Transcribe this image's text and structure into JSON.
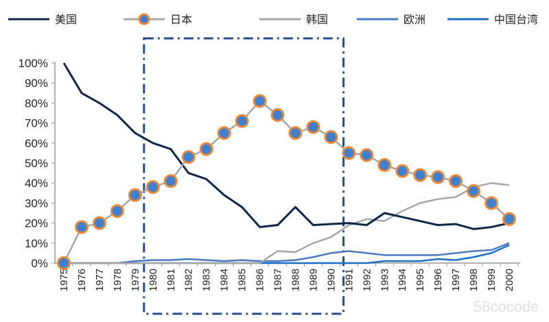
{
  "chart_data": {
    "type": "line",
    "title": "",
    "xlabel": "",
    "ylabel": "",
    "ylim": [
      0,
      100
    ],
    "yticks": [
      "0%",
      "10%",
      "20%",
      "30%",
      "40%",
      "50%",
      "60%",
      "70%",
      "80%",
      "90%",
      "100%"
    ],
    "categories": [
      "1975",
      "1976",
      "1977",
      "1978",
      "1979",
      "1980",
      "1981",
      "1982",
      "1983",
      "1984",
      "1985",
      "1986",
      "1987",
      "1988",
      "1989",
      "1990",
      "1991",
      "1992",
      "1993",
      "1994",
      "1995",
      "1996",
      "1997",
      "1998",
      "1999",
      "2000"
    ],
    "legend_position": "top",
    "series": [
      {
        "name": "美国",
        "color": "#0f2548",
        "marker": false,
        "values": [
          100,
          85,
          80,
          74,
          65,
          60,
          57,
          45,
          42,
          34,
          28,
          18,
          19,
          28,
          19,
          19.5,
          20,
          19,
          25,
          23,
          21,
          19,
          19.5,
          17,
          18,
          20
        ]
      },
      {
        "name": "日本",
        "color": "#a6a6a6",
        "marker": true,
        "marker_fill": "#3f7fd0",
        "marker_edge": "#e8893a",
        "values": [
          0,
          18,
          20,
          26,
          34,
          38,
          41,
          53,
          57,
          65,
          71,
          81,
          74,
          65,
          68,
          63,
          55,
          54,
          49,
          46,
          44,
          43,
          41,
          36,
          30,
          22
        ]
      },
      {
        "name": "韩国",
        "color": "#a6a6a6",
        "marker": false,
        "values": [
          0,
          0,
          0,
          0,
          0,
          0,
          0,
          0,
          0,
          0,
          0,
          0,
          6,
          5.5,
          10,
          13,
          19,
          22,
          21,
          26,
          30,
          32,
          33,
          38,
          40,
          39
        ]
      },
      {
        "name": "欧洲",
        "color": "#4a78c0",
        "marker": false,
        "values": [
          0,
          0,
          0,
          0,
          1,
          1.5,
          1.5,
          2,
          1.5,
          1,
          1.5,
          1,
          1,
          1.5,
          3,
          5,
          6,
          5,
          4,
          4,
          4,
          4,
          5,
          6,
          6.5,
          10
        ]
      },
      {
        "name": "中国台湾",
        "color": "#1a6fc4",
        "marker": false,
        "values": [
          0,
          0,
          0,
          0,
          0,
          0,
          0,
          0,
          0,
          0,
          0,
          0,
          0,
          0,
          0,
          0,
          0,
          0,
          1,
          1,
          1,
          2,
          1.5,
          3,
          5,
          9
        ]
      }
    ],
    "annotations": [
      {
        "type": "dash-dot-box",
        "x_from": "1979.5",
        "x_to": "1990.7",
        "color": "#2a4a8a"
      }
    ],
    "watermark": "58cocode"
  }
}
